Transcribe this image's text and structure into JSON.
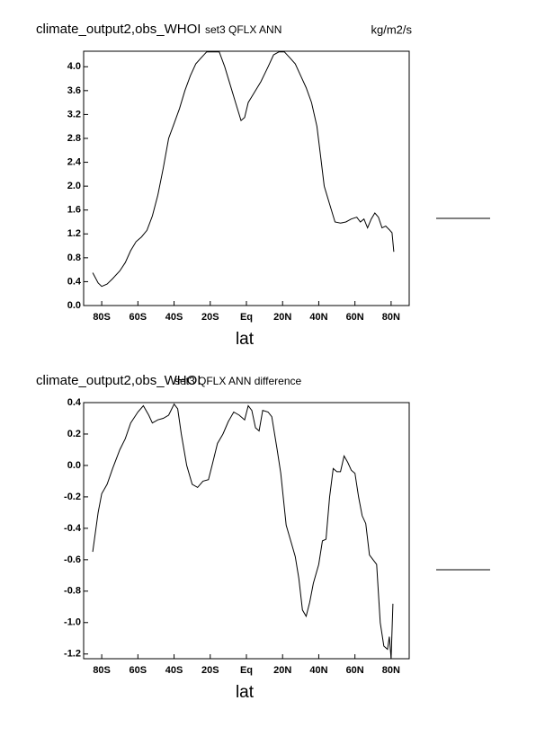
{
  "chart_data": [
    {
      "type": "line",
      "title": "climate_output2,obs_WHOI",
      "subtitle": "set3 QFLX ANN",
      "units": "kg/m2/s",
      "xlabel": "lat",
      "color": "#000000",
      "xlim": [
        -90,
        90
      ],
      "ylim": [
        0,
        4.26
      ],
      "xticks": [
        {
          "value": -80,
          "label": "80S"
        },
        {
          "value": -60,
          "label": "60S"
        },
        {
          "value": -40,
          "label": "40S"
        },
        {
          "value": -20,
          "label": "20S"
        },
        {
          "value": 0,
          "label": "Eq"
        },
        {
          "value": 20,
          "label": "20N"
        },
        {
          "value": 40,
          "label": "40N"
        },
        {
          "value": 60,
          "label": "60N"
        },
        {
          "value": 80,
          "label": "80N"
        }
      ],
      "yticks": [
        {
          "value": 0,
          "label": "0.0"
        },
        0.4,
        0.8,
        1.2,
        1.6,
        {
          "value": 2,
          "label": "2.0"
        },
        2.4,
        2.8,
        3.2,
        3.6,
        {
          "value": 4,
          "label": "4.0"
        }
      ],
      "x": [
        -85,
        -82,
        -80,
        -77,
        -74,
        -70,
        -67,
        -64,
        -61,
        -58,
        -55,
        -52,
        -49,
        -46,
        -43,
        -40,
        -37,
        -34,
        -31,
        -28,
        -25,
        -22,
        -19,
        -15,
        -12,
        -9,
        -6,
        -3,
        -1,
        1,
        4,
        8,
        12,
        15,
        18,
        21,
        24,
        27,
        30,
        33,
        36,
        39,
        41,
        43,
        46,
        49,
        52,
        55,
        58,
        61,
        63,
        65,
        67,
        69,
        71,
        73,
        75,
        77,
        79,
        80.5,
        81.5
      ],
      "values": [
        0.55,
        0.38,
        0.32,
        0.36,
        0.45,
        0.58,
        0.72,
        0.92,
        1.07,
        1.15,
        1.26,
        1.5,
        1.85,
        2.3,
        2.8,
        3.05,
        3.3,
        3.6,
        3.85,
        4.05,
        4.15,
        4.25,
        4.25,
        4.25,
        4.0,
        3.7,
        3.4,
        3.1,
        3.15,
        3.4,
        3.55,
        3.75,
        4.0,
        4.2,
        4.25,
        4.25,
        4.15,
        4.05,
        3.85,
        3.65,
        3.4,
        3.0,
        2.5,
        2.0,
        1.7,
        1.4,
        1.38,
        1.4,
        1.45,
        1.48,
        1.4,
        1.45,
        1.3,
        1.45,
        1.55,
        1.48,
        1.3,
        1.33,
        1.27,
        1.22,
        0.9
      ]
    },
    {
      "type": "line",
      "title": "climate_output2,obs_WHOI",
      "subtitle": "set3 QFLX ANN difference",
      "xlabel": "lat",
      "color": "#000000",
      "xlim": [
        -90,
        90
      ],
      "ylim": [
        -1.23,
        0.4
      ],
      "xticks": [
        {
          "value": -80,
          "label": "80S"
        },
        {
          "value": -60,
          "label": "60S"
        },
        {
          "value": -40,
          "label": "40S"
        },
        {
          "value": -20,
          "label": "20S"
        },
        {
          "value": 0,
          "label": "Eq"
        },
        {
          "value": 20,
          "label": "20N"
        },
        {
          "value": 40,
          "label": "40N"
        },
        {
          "value": 60,
          "label": "60N"
        },
        {
          "value": 80,
          "label": "80N"
        }
      ],
      "yticks": [
        -1.2,
        {
          "value": -1,
          "label": "-1.0"
        },
        -0.8,
        -0.6,
        -0.4,
        -0.2,
        {
          "value": 0,
          "label": "0.0"
        },
        0.2,
        0.4
      ],
      "x": [
        -85,
        -82,
        -80,
        -77,
        -74,
        -70,
        -67,
        -64,
        -60,
        -57,
        -54,
        -52,
        -49,
        -46,
        -43,
        -40,
        -38,
        -36,
        -33,
        -30,
        -27,
        -24,
        -21,
        -19,
        -16,
        -13,
        -10,
        -7,
        -4,
        -1,
        1,
        3,
        5,
        7,
        9,
        12,
        14,
        17,
        19,
        22,
        25,
        27,
        29,
        31,
        33,
        35,
        37,
        40,
        42,
        44,
        46,
        48,
        50,
        52,
        54,
        56,
        58,
        60,
        62,
        64,
        66,
        68,
        70,
        72,
        74,
        76,
        78,
        79,
        80,
        81
      ],
      "values": [
        -0.55,
        -0.3,
        -0.18,
        -0.12,
        -0.02,
        0.1,
        0.17,
        0.27,
        0.34,
        0.38,
        0.32,
        0.27,
        0.29,
        0.3,
        0.32,
        0.39,
        0.36,
        0.2,
        0.0,
        -0.12,
        -0.14,
        -0.1,
        -0.09,
        0.0,
        0.14,
        0.2,
        0.28,
        0.34,
        0.32,
        0.29,
        0.38,
        0.35,
        0.24,
        0.22,
        0.35,
        0.34,
        0.31,
        0.1,
        -0.05,
        -0.38,
        -0.5,
        -0.58,
        -0.72,
        -0.92,
        -0.96,
        -0.87,
        -0.75,
        -0.63,
        -0.48,
        -0.47,
        -0.2,
        -0.02,
        -0.04,
        -0.04,
        0.06,
        0.02,
        -0.03,
        -0.05,
        -0.2,
        -0.32,
        -0.37,
        -0.57,
        -0.6,
        -0.63,
        -1.0,
        -1.15,
        -1.17,
        -1.09,
        -1.23,
        -0.88
      ]
    }
  ]
}
